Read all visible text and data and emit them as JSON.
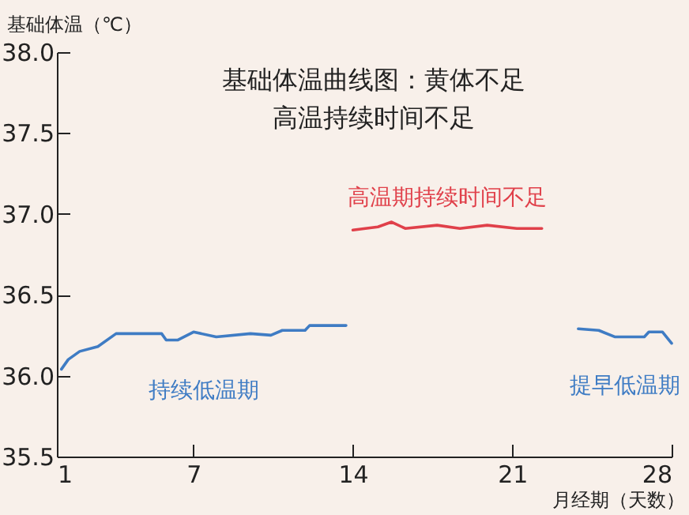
{
  "chart_data": {
    "type": "line",
    "title": "基础体温曲线图：黄体不足",
    "subtitle": "高温持续时间不足",
    "xlabel": "月经期（天数）",
    "ylabel": "基础体温（℃）",
    "xlim": [
      1,
      28
    ],
    "xticks": [
      1,
      7,
      14,
      21,
      28
    ],
    "ylim": [
      35.5,
      38.0
    ],
    "yticks": [
      {
        "value": 35.5,
        "label": "35.5"
      },
      {
        "value": 36,
        "label": "36.0"
      },
      {
        "value": 36.5,
        "label": "36.5"
      },
      {
        "value": 37,
        "label": "37.0"
      },
      {
        "value": 37.5,
        "label": "37.5"
      },
      {
        "value": 38,
        "label": "38.0"
      }
    ],
    "grid": false,
    "marker": "none",
    "line_style": "solid",
    "series": [
      {
        "color": "#3f7cc4",
        "x": [
          1.2,
          1.5,
          2.0,
          2.8,
          3.6,
          5.6,
          5.8,
          6.3,
          7.0,
          8.0,
          9.5,
          10.4,
          10.9,
          11.9,
          12.1,
          13.7
        ],
        "values": [
          36.04,
          36.1,
          36.15,
          36.18,
          36.26,
          36.26,
          36.22,
          36.22,
          36.27,
          36.24,
          36.26,
          36.25,
          36.28,
          36.28,
          36.31,
          36.31
        ]
      },
      {
        "color": "#e0404a",
        "x": [
          14.0,
          15.1,
          15.7,
          16.3,
          17.7,
          18.7,
          19.9,
          21.2,
          22.3
        ],
        "values": [
          36.9,
          36.92,
          36.95,
          36.91,
          36.93,
          36.91,
          36.93,
          36.91,
          36.91
        ]
      },
      {
        "color": "#3f7cc4",
        "x": [
          23.9,
          24.8,
          25.5,
          26.8,
          27.0,
          27.6,
          28.0
        ],
        "values": [
          36.29,
          36.28,
          36.24,
          36.24,
          36.27,
          36.27,
          36.2
        ]
      }
    ],
    "annotations": [
      "持续低温期",
      "高温期持续时间不足",
      "提早低温期"
    ]
  }
}
